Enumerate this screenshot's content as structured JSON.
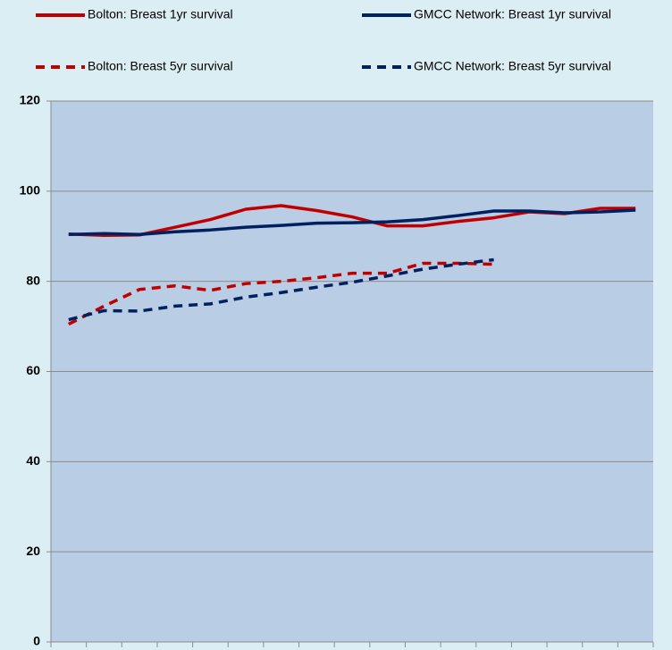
{
  "chart_data": {
    "type": "line",
    "categories": [
      null,
      null,
      null,
      null,
      null,
      null,
      null,
      null,
      null,
      null,
      null,
      null,
      null,
      null,
      null,
      null,
      null
    ],
    "series": [
      {
        "name": "Bolton: Breast 1yr survival",
        "color": "#c00000",
        "dash": false,
        "values": [
          90.5,
          90.2,
          90.3,
          92,
          93.7,
          96,
          96.8,
          95.7,
          94.3,
          92.3,
          92.3,
          93.3,
          94.1,
          95.4,
          95,
          96.2,
          96.2
        ]
      },
      {
        "name": "GMCC Network: Breast 1yr survival",
        "color": "#002060",
        "dash": false,
        "values": [
          90.4,
          90.6,
          90.4,
          91,
          91.4,
          92,
          92.4,
          92.9,
          93,
          93.2,
          93.7,
          94.6,
          95.6,
          95.6,
          95.2,
          95.4,
          95.8
        ]
      },
      {
        "name": "Bolton: Breast 5yr survival",
        "color": "#c00000",
        "dash": true,
        "values": [
          70.5,
          74.5,
          78.2,
          79,
          78,
          79.5,
          80,
          80.8,
          81.8,
          81.8,
          84,
          84,
          83.8,
          null,
          null,
          null,
          null
        ]
      },
      {
        "name": "GMCC Network: Breast 5yr survival",
        "color": "#002060",
        "dash": true,
        "values": [
          71.5,
          73.5,
          73.4,
          74.5,
          75,
          76.5,
          77.5,
          78.7,
          79.8,
          81.2,
          82.7,
          83.8,
          84.8,
          null,
          null,
          null,
          null
        ]
      }
    ],
    "ylim": [
      0,
      120
    ],
    "yticks": [
      0,
      20,
      40,
      60,
      80,
      100,
      120
    ],
    "grid": true
  }
}
